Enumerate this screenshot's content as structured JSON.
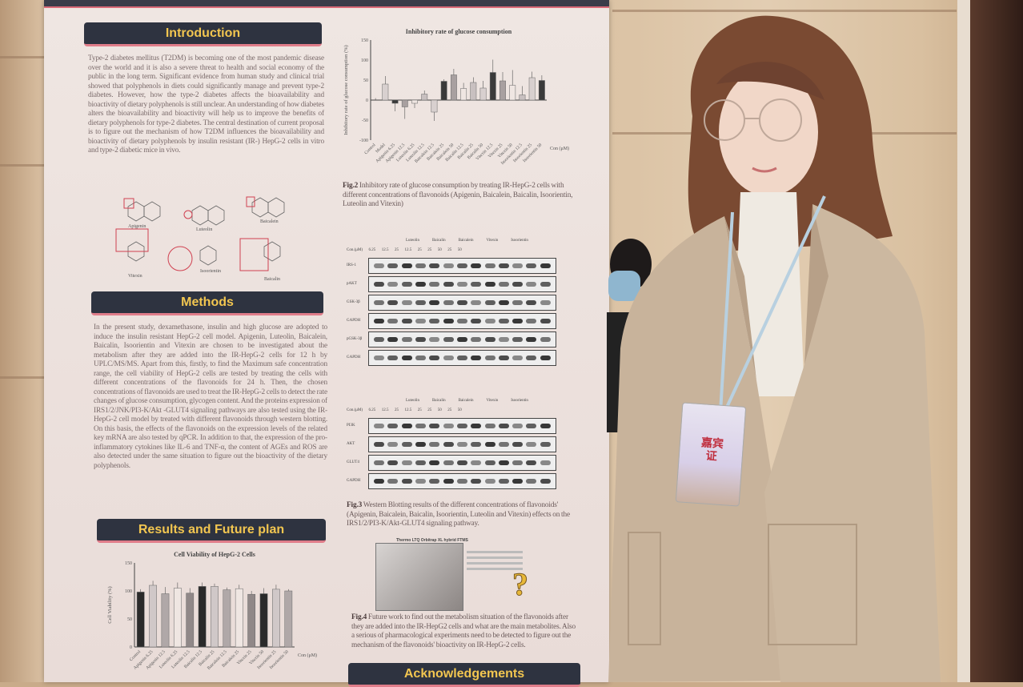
{
  "poster": {
    "sections": {
      "introduction": "Introduction",
      "methods": "Methods",
      "results": "Results and Future plan",
      "acknowledgements": "Acknowledgements"
    },
    "introduction_text": "Type-2 diabetes mellitus (T2DM) is becoming one of the most pandemic disease over the world and it is also a severe threat to health and social economy of the public in the long term. Significant evidence from human study and clinical trial showed that polyphenols in diets could significantly manage and prevent type-2 diabetes. However, how the type-2 diabetes affects the bioavailability and bioactivity of dietary polyphenols is still unclear. An understanding of how diabetes alters the bioavailability and bioactivity will help us to improve the benefits of dietary polyphenols for type-2 diabetes. The central destination of current proposal is to figure out the mechanism of how T2DM influences the bioavailability and bioactivity of dietary polyphenols by insulin resistant (IR-) HepG-2 cells in vitro and type-2 diabetic mice in vivo.",
    "molecules": [
      "Apigenin",
      "Luteolin",
      "Baicalein",
      "Vitexin",
      "Isoorientin",
      "Baicalin"
    ],
    "methods_text": "In the present study, dexamethasone, insulin and high glucose are adopted to induce the insulin resistant HepG-2 cell model. Apigenin, Luteolin, Baicalein, Baicalin, Isoorientin and Vitexin are chosen to be investigated about the metabolism after they are added into the IR-HepG-2 cells for 12 h by UPLC/MS/MS. Apart from this, firstly, to find the Maximum safe concentration range, the cell viability of HepG-2 cells are tested by treating the cells with different concentrations of the flavonoids for 24 h. Then, the chosen concentrations of flavonoids are used to treat the IR-HepG-2 cells to detect the rate changes of glucose consumption, glycogen content. And the proteins expression of IRS1/2/JNK/PI3-K/Akt -GLUT4 signaling pathways are also tested using the IR-HepG-2 cell model by treated with different flavonoids through western blotting. On this basis, the effects of the flavonoids on the expression levels of the related key mRNA are also tested by qPCR. In addition to that, the expression of the pro-inflammatory cytokines like IL-6 and TNF-α, the content of AGEs and ROS are also detected under the same situation to figure out the bioactivity of the dietary polyphenols.",
    "fig2_label": "Fig.2",
    "fig2_caption": "Inhibitory rate of glucose consumption by treating IR-HepG-2 cells with different concentrations of flavonoids (Apigenin, Baicalein, Baicalin, Isoorientin, Luteolin and Vitexin)",
    "fig3_label": "Fig.3",
    "fig3_caption": "Western Blotting results of the different concentrations of flavonoids' (Apigenin, Baicalein, Baicalin, Isoorientin, Luteolin and Vitexin) effects on the IRS1/2/PI3-K/Akt-GLUT4 signaling pathway.",
    "fig4_label": "Fig.4",
    "fig4_caption": "Future work to find out the metabolism situation of the flavonoids after they are added into the IR-HepG2 cells and what are the main metabolites. Also a serious of pharmacological experiments need to be detected to figure out the mechanism of the flavonoids' bioactivity on IR-HepG-2 cells.",
    "instrument_title": "Thermo LTQ Orbitrap XL hybrid FTMS",
    "blot_rows_a": [
      "IRS-1",
      "pAKT",
      "GSK-3β",
      "GAPDH",
      "pGSK-3β",
      "GAPDH"
    ],
    "blot_rows_b": [
      "PI3K",
      "AKT",
      "GLUT4",
      "GAPDH"
    ],
    "blot_groups": [
      "Luteolin",
      "Baicalin",
      "Baicalein",
      "Vitexin",
      "Isoorientin"
    ],
    "blot_conc_label": "Con.(μM)",
    "blot_conc": [
      "6.25",
      "12.5",
      "25",
      "12.5",
      "25",
      "25",
      "50",
      "25",
      "50"
    ],
    "question_mark": "?"
  },
  "badge": {
    "text": "嘉宾证"
  },
  "chart_data": [
    {
      "type": "bar",
      "title": "Inhibitory rate of glucose consumption",
      "ylabel": "Inhibitory rate of glucose consumption (%)",
      "xlabel": "Con (μM)",
      "ylim": [
        -100,
        150
      ],
      "yticks": [
        -100,
        -50,
        0,
        50,
        100,
        150
      ],
      "categories": [
        "Control",
        "Model",
        "Apigenin 6.25",
        "Apigenin 12.5",
        "Luteolin 6.25",
        "Luteolin 12.5",
        "Baicalein 12.5",
        "Baicalein 25",
        "Baicalein 50",
        "Baicalin 12.5",
        "Baicalin 25",
        "Baicalin 50",
        "Vitexin 12.5",
        "Vitexin 25",
        "Vitexin 50",
        "Isoorientin 12.5",
        "Isoorientin 25",
        "Isoorientin 50"
      ],
      "values": [
        0,
        40,
        -8,
        -17,
        -8,
        15,
        -30,
        47,
        63,
        29,
        44,
        30,
        69,
        48,
        37,
        13,
        56,
        49
      ],
      "errors": [
        5,
        20,
        20,
        30,
        12,
        9,
        22,
        5,
        15,
        14,
        13,
        18,
        32,
        22,
        38,
        22,
        15,
        13
      ]
    },
    {
      "type": "bar",
      "title": "Cell Viability of HepG-2 Cells",
      "ylabel": "Cell Viability (%)",
      "xlabel": "Con (μM)",
      "ylim": [
        0,
        150
      ],
      "yticks": [
        0,
        50,
        100,
        150
      ],
      "categories": [
        "Control",
        "Apigenin 6.25",
        "Apigenin 12.5",
        "Luteolin 6.25",
        "Luteolin 12.5",
        "Baicalin 12.5",
        "Baicalin 25",
        "Baicalein 12.5",
        "Baicalein 25",
        "Vitexin 25",
        "Vitexin 50",
        "Isoorientin 25",
        "Isoorientin 50"
      ],
      "values": [
        98,
        110,
        95,
        105,
        96,
        108,
        108,
        102,
        104,
        94,
        95,
        103,
        100
      ],
      "errors": [
        5,
        8,
        12,
        10,
        9,
        7,
        5,
        4,
        7,
        6,
        10,
        8,
        3
      ]
    }
  ]
}
